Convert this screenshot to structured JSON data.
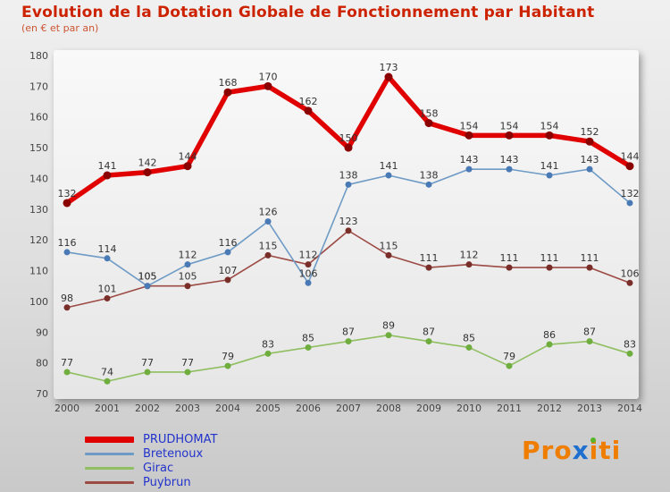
{
  "header": {
    "title": "Evolution de la Dotation Globale de Fonctionnement par Habitant",
    "subtitle": "(en € et par an)"
  },
  "chart_data": {
    "type": "line",
    "x": [
      2000,
      2001,
      2002,
      2003,
      2004,
      2005,
      2006,
      2007,
      2008,
      2009,
      2010,
      2011,
      2012,
      2013,
      2014
    ],
    "ylim": [
      70,
      180
    ],
    "yticks": [
      70,
      80,
      90,
      100,
      110,
      120,
      130,
      140,
      150,
      160,
      170,
      180
    ],
    "grid": false,
    "legend_position": "bottom-left",
    "title": "Evolution de la Dotation Globale de Fonctionnement par Habitant",
    "xlabel": "",
    "ylabel": "",
    "series": [
      {
        "name": "PRUDHOMAT",
        "color": "#e00000",
        "marker_color": "#8b0000",
        "line_width": 5.5,
        "marker_radius": 4.5,
        "values": [
          132,
          141,
          142,
          144,
          168,
          170,
          162,
          150,
          173,
          158,
          154,
          154,
          154,
          152,
          144
        ]
      },
      {
        "name": "Bretenoux",
        "color": "#6e9bc5",
        "marker_color": "#4a7ab5",
        "line_width": 1.6,
        "marker_radius": 3.5,
        "values": [
          116,
          114,
          105,
          112,
          116,
          126,
          106,
          138,
          141,
          138,
          143,
          143,
          141,
          143,
          132
        ]
      },
      {
        "name": "Girac",
        "color": "#8fbf60",
        "marker_color": "#6fae3e",
        "line_width": 1.6,
        "marker_radius": 3.5,
        "values": [
          77,
          74,
          77,
          77,
          79,
          83,
          85,
          87,
          89,
          87,
          85,
          79,
          86,
          87,
          83
        ]
      },
      {
        "name": "Puybrun",
        "color": "#9c4a44",
        "marker_color": "#7a2e2a",
        "line_width": 1.6,
        "marker_radius": 3.5,
        "values": [
          98,
          101,
          105,
          105,
          107,
          115,
          112,
          123,
          115,
          111,
          112,
          111,
          111,
          111,
          106
        ]
      }
    ]
  },
  "legend": {
    "items": [
      {
        "label": "PRUDHOMAT"
      },
      {
        "label": "Bretenoux"
      },
      {
        "label": "Girac"
      },
      {
        "label": "Puybrun"
      }
    ]
  },
  "logo": {
    "part1": "Pro",
    "part2": "x",
    "part3": "i",
    "part4": "ti",
    "orange": "#ef7d00",
    "blue": "#1f6fd0",
    "dot_green": "#58b52a"
  }
}
